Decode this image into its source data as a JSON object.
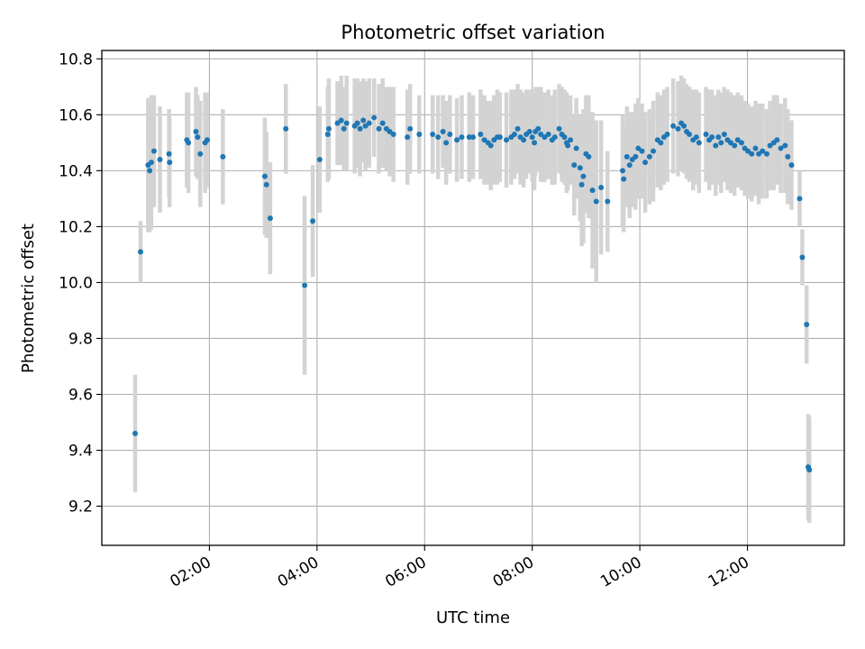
{
  "chart_data": {
    "type": "scatter",
    "title": "Photometric offset variation",
    "xlabel": "UTC time",
    "ylabel": "Photometric offset",
    "x_unit": "hours UTC",
    "xlim": [
      0.0,
      13.8
    ],
    "ylim": [
      9.06,
      10.83
    ],
    "x_ticks": [
      {
        "value": 2,
        "label": "02:00"
      },
      {
        "value": 4,
        "label": "04:00"
      },
      {
        "value": 6,
        "label": "06:00"
      },
      {
        "value": 8,
        "label": "08:00"
      },
      {
        "value": 10,
        "label": "10:00"
      },
      {
        "value": 12,
        "label": "12:00"
      }
    ],
    "y_ticks": [
      {
        "value": 9.2,
        "label": "9.2"
      },
      {
        "value": 9.4,
        "label": "9.4"
      },
      {
        "value": 9.6,
        "label": "9.6"
      },
      {
        "value": 9.8,
        "label": "9.8"
      },
      {
        "value": 10.0,
        "label": "10.0"
      },
      {
        "value": 10.2,
        "label": "10.2"
      },
      {
        "value": 10.4,
        "label": "10.4"
      },
      {
        "value": 10.6,
        "label": "10.6"
      },
      {
        "value": 10.8,
        "label": "10.8"
      }
    ],
    "grid": true,
    "colors": {
      "points": "#1f77b4",
      "error_bars": "#d3d3d3",
      "grid": "#b0b0b0"
    },
    "series": [
      {
        "x": [
          0.62,
          0.72,
          0.86,
          0.89,
          0.92,
          0.97,
          1.08,
          1.25,
          1.26,
          1.58,
          1.61,
          1.75,
          1.78,
          1.83,
          1.92,
          1.96,
          2.25,
          3.03,
          3.06,
          3.13,
          3.42,
          3.77,
          3.92,
          4.05,
          4.2,
          4.22,
          4.38,
          4.45,
          4.5,
          4.55,
          4.7,
          4.75,
          4.8,
          4.86,
          4.9,
          4.97,
          5.06,
          5.15,
          5.22,
          5.29,
          5.35,
          5.42,
          5.68,
          5.73,
          5.9,
          6.15,
          6.25,
          6.34,
          6.4,
          6.47,
          6.6,
          6.69,
          6.83,
          6.9,
          7.04,
          7.11,
          7.18,
          7.23,
          7.29,
          7.35,
          7.4,
          7.52,
          7.61,
          7.67,
          7.73,
          7.78,
          7.84,
          7.89,
          7.95,
          8.0,
          8.04,
          8.06,
          8.11,
          8.16,
          8.23,
          8.3,
          8.37,
          8.42,
          8.5,
          8.55,
          8.6,
          8.64,
          8.66,
          8.71,
          8.78,
          8.82,
          8.89,
          8.92,
          8.95,
          9.0,
          9.05,
          9.12,
          9.19,
          9.28,
          9.4,
          9.68,
          9.7,
          9.76,
          9.81,
          9.86,
          9.92,
          9.97,
          10.04,
          10.1,
          10.18,
          10.25,
          10.33,
          10.39,
          10.45,
          10.51,
          10.62,
          10.71,
          10.77,
          10.82,
          10.87,
          10.92,
          10.99,
          11.05,
          11.1,
          11.23,
          11.29,
          11.34,
          11.41,
          11.46,
          11.51,
          11.57,
          11.63,
          11.69,
          11.76,
          11.82,
          11.89,
          11.95,
          12.01,
          12.08,
          12.15,
          12.21,
          12.28,
          12.36,
          12.42,
          12.49,
          12.55,
          12.62,
          12.7,
          12.75,
          12.82,
          12.97,
          13.02,
          13.1,
          13.13,
          13.15
        ],
        "y": [
          9.46,
          10.11,
          10.42,
          10.4,
          10.43,
          10.47,
          10.44,
          10.46,
          10.43,
          10.51,
          10.5,
          10.54,
          10.52,
          10.46,
          10.5,
          10.51,
          10.45,
          10.38,
          10.35,
          10.23,
          10.55,
          9.99,
          10.22,
          10.44,
          10.53,
          10.55,
          10.57,
          10.58,
          10.55,
          10.57,
          10.56,
          10.57,
          10.55,
          10.58,
          10.56,
          10.57,
          10.59,
          10.55,
          10.57,
          10.55,
          10.54,
          10.53,
          10.52,
          10.55,
          10.53,
          10.53,
          10.52,
          10.54,
          10.5,
          10.53,
          10.51,
          10.52,
          10.52,
          10.52,
          10.53,
          10.51,
          10.5,
          10.49,
          10.51,
          10.52,
          10.52,
          10.51,
          10.52,
          10.53,
          10.55,
          10.52,
          10.51,
          10.53,
          10.54,
          10.52,
          10.5,
          10.54,
          10.55,
          10.53,
          10.52,
          10.53,
          10.51,
          10.52,
          10.55,
          10.53,
          10.52,
          10.5,
          10.49,
          10.51,
          10.42,
          10.48,
          10.41,
          10.35,
          10.38,
          10.46,
          10.45,
          10.33,
          10.29,
          10.34,
          10.29,
          10.4,
          10.37,
          10.45,
          10.42,
          10.44,
          10.45,
          10.48,
          10.47,
          10.43,
          10.45,
          10.47,
          10.51,
          10.5,
          10.52,
          10.53,
          10.56,
          10.55,
          10.57,
          10.56,
          10.54,
          10.53,
          10.51,
          10.52,
          10.5,
          10.53,
          10.51,
          10.52,
          10.49,
          10.52,
          10.5,
          10.53,
          10.51,
          10.5,
          10.49,
          10.51,
          10.5,
          10.48,
          10.47,
          10.46,
          10.48,
          10.46,
          10.47,
          10.46,
          10.49,
          10.5,
          10.51,
          10.48,
          10.49,
          10.45,
          10.42,
          10.3,
          10.09,
          9.85,
          9.34,
          9.33
        ],
        "yerr": [
          0.21,
          0.11,
          0.24,
          0.22,
          0.24,
          0.2,
          0.19,
          0.16,
          0.16,
          0.17,
          0.18,
          0.16,
          0.15,
          0.19,
          0.18,
          0.17,
          0.17,
          0.21,
          0.19,
          0.2,
          0.16,
          0.32,
          0.2,
          0.19,
          0.17,
          0.18,
          0.15,
          0.16,
          0.15,
          0.17,
          0.17,
          0.16,
          0.17,
          0.15,
          0.16,
          0.16,
          0.14,
          0.16,
          0.16,
          0.15,
          0.16,
          0.17,
          0.17,
          0.16,
          0.14,
          0.14,
          0.15,
          0.13,
          0.15,
          0.14,
          0.15,
          0.15,
          0.16,
          0.15,
          0.16,
          0.16,
          0.15,
          0.16,
          0.16,
          0.17,
          0.16,
          0.17,
          0.17,
          0.16,
          0.16,
          0.17,
          0.17,
          0.16,
          0.15,
          0.16,
          0.17,
          0.16,
          0.15,
          0.17,
          0.16,
          0.16,
          0.16,
          0.17,
          0.16,
          0.17,
          0.17,
          0.18,
          0.16,
          0.16,
          0.18,
          0.18,
          0.19,
          0.22,
          0.24,
          0.21,
          0.22,
          0.28,
          0.29,
          0.24,
          0.18,
          0.2,
          0.19,
          0.18,
          0.19,
          0.17,
          0.19,
          0.18,
          0.17,
          0.18,
          0.17,
          0.18,
          0.17,
          0.17,
          0.17,
          0.17,
          0.17,
          0.17,
          0.17,
          0.17,
          0.17,
          0.17,
          0.18,
          0.17,
          0.18,
          0.17,
          0.18,
          0.17,
          0.18,
          0.17,
          0.18,
          0.17,
          0.18,
          0.18,
          0.18,
          0.17,
          0.17,
          0.17,
          0.17,
          0.17,
          0.17,
          0.18,
          0.17,
          0.16,
          0.16,
          0.17,
          0.16,
          0.16,
          0.17,
          0.17,
          0.16,
          0.1,
          0.1,
          0.14,
          0.19,
          0.19
        ]
      }
    ]
  }
}
